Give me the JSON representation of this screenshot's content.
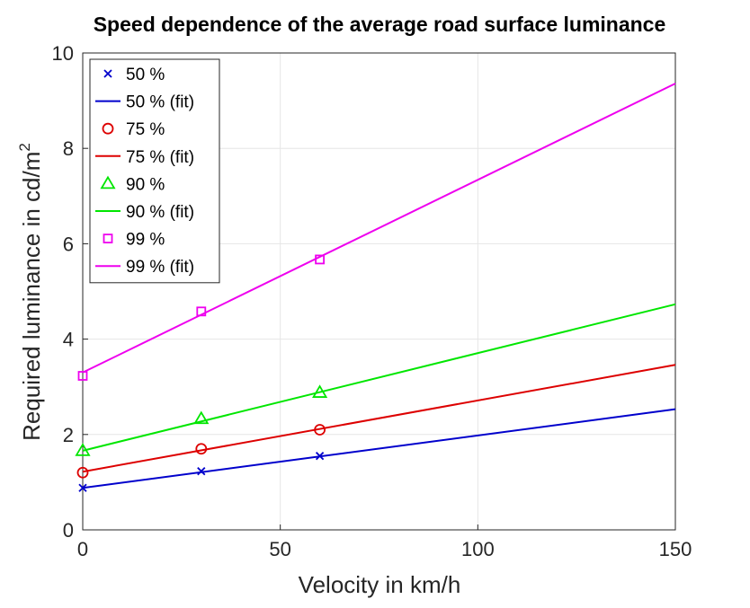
{
  "chart_data": {
    "type": "line",
    "title": "Speed dependence of the average road surface luminance",
    "xlabel": "Velocity in km/h",
    "ylabel": {
      "main": "Required luminance in cd/m",
      "superscript": "2"
    },
    "xlim": [
      0,
      150
    ],
    "ylim": [
      0,
      10
    ],
    "xticks": [
      0,
      50,
      100,
      150
    ],
    "yticks": [
      0,
      2,
      4,
      6,
      8,
      10
    ],
    "xtick_labels": [
      "0",
      "50",
      "100",
      "150"
    ],
    "ytick_labels": [
      "0",
      "2",
      "4",
      "6",
      "8",
      "10"
    ],
    "grid": true,
    "legend_position": "top-left",
    "series": [
      {
        "name": "50 %",
        "fit_name": "50 % (fit)",
        "color": "#0000cc",
        "marker": "x",
        "points": [
          {
            "x": 0,
            "y": 0.88
          },
          {
            "x": 30,
            "y": 1.23
          },
          {
            "x": 60,
            "y": 1.55
          }
        ],
        "fit": [
          {
            "x": 0,
            "y": 0.88
          },
          {
            "x": 150,
            "y": 2.53
          }
        ]
      },
      {
        "name": "75 %",
        "fit_name": "75 % (fit)",
        "color": "#dd0000",
        "marker": "circle",
        "points": [
          {
            "x": 0,
            "y": 1.2
          },
          {
            "x": 30,
            "y": 1.7
          },
          {
            "x": 60,
            "y": 2.1
          }
        ],
        "fit": [
          {
            "x": 0,
            "y": 1.22
          },
          {
            "x": 150,
            "y": 3.46
          }
        ]
      },
      {
        "name": "90 %",
        "fit_name": "90 % (fit)",
        "color": "#00e600",
        "marker": "triangle",
        "points": [
          {
            "x": 0,
            "y": 1.66
          },
          {
            "x": 30,
            "y": 2.33
          },
          {
            "x": 60,
            "y": 2.88
          }
        ],
        "fit": [
          {
            "x": 0,
            "y": 1.66
          },
          {
            "x": 150,
            "y": 4.73
          }
        ]
      },
      {
        "name": "99 %",
        "fit_name": "99 % (fit)",
        "color": "#ee00ee",
        "marker": "square",
        "points": [
          {
            "x": 0,
            "y": 3.23
          },
          {
            "x": 30,
            "y": 4.58
          },
          {
            "x": 60,
            "y": 5.67
          }
        ],
        "fit": [
          {
            "x": 0,
            "y": 3.3
          },
          {
            "x": 150,
            "y": 9.36
          }
        ]
      }
    ]
  }
}
